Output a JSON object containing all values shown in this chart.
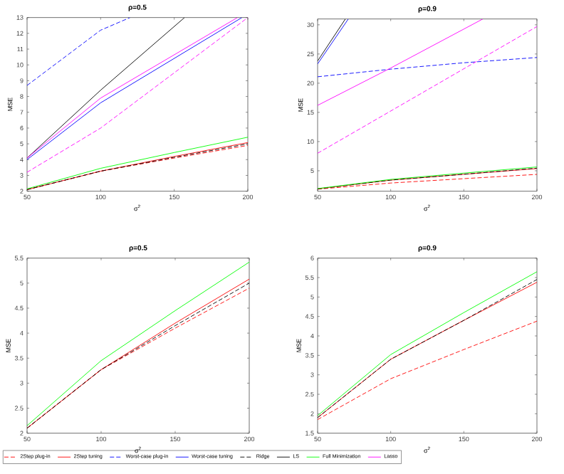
{
  "chart_data": [
    {
      "type": "line",
      "title": "ρ=0.5",
      "xlabel": "σ$^{2}$",
      "ylabel": "MSE",
      "xlim": [
        50,
        200
      ],
      "ylim": [
        2,
        13
      ],
      "xticks": [
        50,
        100,
        150,
        200
      ],
      "yticks": [
        2,
        3,
        4,
        5,
        6,
        7,
        8,
        9,
        10,
        11,
        12,
        13
      ],
      "legend": "bottom",
      "series": [
        {
          "name": "2Step plug-in",
          "color": "#ff0000",
          "line_style": "dashed",
          "x": [
            50,
            100,
            150,
            200
          ],
          "values": [
            2.1,
            3.27,
            4.1,
            4.9
          ]
        },
        {
          "name": "2Step tuning",
          "color": "#ff0000",
          "line_style": "solid",
          "x": [
            50,
            100,
            150,
            200
          ],
          "values": [
            2.1,
            3.27,
            4.2,
            5.08
          ]
        },
        {
          "name": "Worst-case plug-in",
          "color": "#0000ff",
          "line_style": "dashed",
          "x": [
            50,
            100,
            120
          ],
          "values": [
            8.7,
            12.2,
            13
          ]
        },
        {
          "name": "Worst-case tuning",
          "color": "#0000ff",
          "line_style": "solid",
          "x": [
            50,
            100,
            196
          ],
          "values": [
            4.0,
            7.6,
            13
          ]
        },
        {
          "name": "Ridge",
          "color": "#000000",
          "line_style": "dashed",
          "x": [
            50,
            100,
            150,
            200
          ],
          "values": [
            2.1,
            3.27,
            4.15,
            5.0
          ]
        },
        {
          "name": "LS",
          "color": "#000000",
          "line_style": "solid",
          "x": [
            50,
            100,
            157
          ],
          "values": [
            4.1,
            8.4,
            13
          ]
        },
        {
          "name": "Full Minimization",
          "color": "#00ff00",
          "line_style": "solid",
          "x": [
            50,
            100,
            150,
            200
          ],
          "values": [
            2.15,
            3.45,
            4.45,
            5.42
          ]
        },
        {
          "name": "Lasso",
          "color": "#ff00ff",
          "line_style": "solid",
          "x": [
            50,
            100,
            193
          ],
          "values": [
            4.1,
            7.9,
            13
          ]
        },
        {
          "color": "#ff00ff",
          "line_style": "dashed",
          "x": [
            50,
            100,
            200
          ],
          "values": [
            3.2,
            6.0,
            13
          ]
        }
      ]
    },
    {
      "type": "line",
      "title": "ρ=0.9",
      "xlabel": "σ$^{2}$",
      "ylabel": "MSE",
      "xlim": [
        50,
        200
      ],
      "ylim": [
        1.5,
        31
      ],
      "xticks": [
        50,
        100,
        150,
        200
      ],
      "yticks": [
        5,
        10,
        15,
        20,
        25,
        30
      ],
      "series": [
        {
          "color": "#ff0000",
          "line_style": "dashed",
          "x": [
            50,
            100,
            150,
            200
          ],
          "values": [
            1.85,
            2.9,
            3.65,
            4.38
          ]
        },
        {
          "color": "#ff0000",
          "line_style": "solid",
          "x": [
            50,
            100,
            150,
            200
          ],
          "values": [
            1.9,
            3.4,
            4.4,
            5.38
          ]
        },
        {
          "color": "#0000ff",
          "line_style": "dashed",
          "x": [
            50,
            100,
            150,
            200
          ],
          "values": [
            21.1,
            22.4,
            23.5,
            24.4
          ]
        },
        {
          "color": "#0000ff",
          "line_style": "solid",
          "x": [
            50,
            71
          ],
          "values": [
            23.3,
            31
          ]
        },
        {
          "color": "#000000",
          "line_style": "dashed",
          "x": [
            50,
            100,
            150,
            200
          ],
          "values": [
            1.9,
            3.4,
            4.4,
            5.45
          ]
        },
        {
          "color": "#000000",
          "line_style": "solid",
          "x": [
            50,
            69
          ],
          "values": [
            23.8,
            31
          ]
        },
        {
          "color": "#00ff00",
          "line_style": "solid",
          "x": [
            50,
            100,
            150,
            200
          ],
          "values": [
            1.95,
            3.52,
            4.6,
            5.65
          ]
        },
        {
          "color": "#ff00ff",
          "line_style": "solid",
          "x": [
            50,
            100,
            163
          ],
          "values": [
            16.2,
            22.6,
            31
          ]
        },
        {
          "color": "#ff00ff",
          "line_style": "dashed",
          "x": [
            50,
            200
          ],
          "values": [
            8.0,
            29.7
          ]
        }
      ]
    },
    {
      "type": "line",
      "title": "ρ=0.5",
      "xlabel": "σ$^{2}$",
      "ylabel": "MSE",
      "xlim": [
        50,
        200
      ],
      "ylim": [
        2,
        5.5
      ],
      "xticks": [
        50,
        100,
        150,
        200
      ],
      "yticks": [
        2,
        2.5,
        3,
        3.5,
        4,
        4.5,
        5,
        5.5
      ],
      "series": [
        {
          "color": "#ff0000",
          "line_style": "dashed",
          "x": [
            50,
            100,
            150,
            200
          ],
          "values": [
            2.1,
            3.27,
            4.1,
            4.9
          ]
        },
        {
          "color": "#ff0000",
          "line_style": "solid",
          "x": [
            50,
            100,
            150,
            200
          ],
          "values": [
            2.1,
            3.27,
            4.2,
            5.08
          ]
        },
        {
          "color": "#000000",
          "line_style": "dashed",
          "x": [
            50,
            100,
            150,
            200
          ],
          "values": [
            2.1,
            3.27,
            4.15,
            5.0
          ]
        },
        {
          "color": "#00ff00",
          "line_style": "solid",
          "x": [
            50,
            100,
            150,
            200
          ],
          "values": [
            2.15,
            3.45,
            4.45,
            5.42
          ]
        }
      ]
    },
    {
      "type": "line",
      "title": "ρ=0.9",
      "xlabel": "σ$^{2}$",
      "ylabel": "MSE",
      "xlim": [
        50,
        200
      ],
      "ylim": [
        1.5,
        6
      ],
      "xticks": [
        50,
        100,
        150,
        200
      ],
      "yticks": [
        1.5,
        2,
        2.5,
        3,
        3.5,
        4,
        4.5,
        5,
        5.5,
        6
      ],
      "series": [
        {
          "color": "#ff0000",
          "line_style": "dashed",
          "x": [
            50,
            100,
            150,
            200
          ],
          "values": [
            1.85,
            2.9,
            3.65,
            4.38
          ]
        },
        {
          "color": "#ff0000",
          "line_style": "solid",
          "x": [
            50,
            100,
            150,
            200
          ],
          "values": [
            1.9,
            3.4,
            4.4,
            5.38
          ]
        },
        {
          "color": "#000000",
          "line_style": "dashed",
          "x": [
            50,
            100,
            150,
            200
          ],
          "values": [
            1.9,
            3.4,
            4.4,
            5.45
          ]
        },
        {
          "color": "#00ff00",
          "line_style": "solid",
          "x": [
            50,
            100,
            150,
            200
          ],
          "values": [
            1.95,
            3.52,
            4.6,
            5.65
          ]
        }
      ]
    }
  ]
}
